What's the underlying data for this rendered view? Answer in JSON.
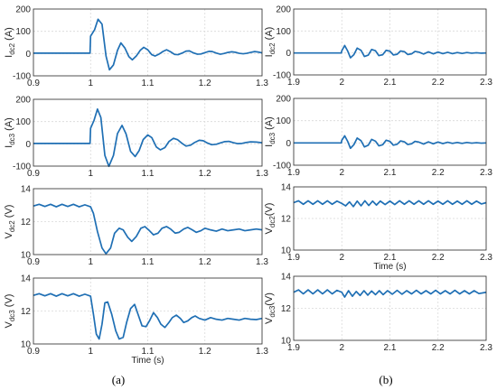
{
  "trace_color": "#1f6fb4",
  "captions": {
    "left": "(a)",
    "right": "(b)"
  },
  "chart_data": [
    {
      "id": "a1",
      "type": "line",
      "ylabel": "I",
      "ylabel_sub": "dc2",
      "ylabel_unit": " (A)",
      "xlim": [
        0.9,
        1.3
      ],
      "ylim": [
        -100,
        200
      ],
      "xticks": [
        "0.9",
        "1",
        "1.1",
        "1.2",
        "1.3"
      ],
      "yticks": [
        "-100",
        "0",
        "100",
        "200"
      ],
      "xlabel": "",
      "series": [
        {
          "x": [
            0.9,
            0.98,
            0.999,
            1.0,
            1.007,
            1.013,
            1.02,
            1.027,
            1.033,
            1.04,
            1.047,
            1.053,
            1.06,
            1.067,
            1.073,
            1.08,
            1.087,
            1.093,
            1.1,
            1.107,
            1.113,
            1.12,
            1.127,
            1.133,
            1.14,
            1.147,
            1.153,
            1.16,
            1.167,
            1.173,
            1.18,
            1.187,
            1.193,
            1.2,
            1.207,
            1.213,
            1.22,
            1.227,
            1.233,
            1.24,
            1.247,
            1.253,
            1.26,
            1.267,
            1.273,
            1.28,
            1.287,
            1.293,
            1.3
          ],
          "y": [
            2,
            2,
            2,
            78,
            107,
            154,
            132,
            -11,
            -73,
            -51,
            14,
            48,
            25,
            -14,
            -28,
            -11,
            15,
            28,
            17,
            -5,
            -11,
            -2,
            10,
            17,
            8,
            -4,
            -5,
            2,
            11,
            12,
            3,
            -3,
            -2,
            4,
            10,
            9,
            2,
            -3,
            0,
            5,
            8,
            6,
            1,
            -1,
            1,
            5,
            9,
            7,
            3
          ]
        }
      ]
    },
    {
      "id": "a2",
      "type": "line",
      "ylabel": "I",
      "ylabel_sub": "dc3",
      "ylabel_unit": " (A)",
      "xlim": [
        0.9,
        1.3
      ],
      "ylim": [
        -100,
        200
      ],
      "xticks": [
        "0.9",
        "1",
        "1.1",
        "1.2",
        "1.3"
      ],
      "yticks": [
        "-100",
        "0",
        "100",
        "200"
      ],
      "xlabel": "",
      "series": [
        {
          "x": [
            0.9,
            0.98,
            0.999,
            1.0,
            1.006,
            1.012,
            1.018,
            1.025,
            1.032,
            1.04,
            1.047,
            1.055,
            1.062,
            1.07,
            1.078,
            1.085,
            1.092,
            1.1,
            1.107,
            1.115,
            1.122,
            1.13,
            1.137,
            1.145,
            1.152,
            1.16,
            1.167,
            1.175,
            1.182,
            1.19,
            1.197,
            1.205,
            1.212,
            1.22,
            1.227,
            1.235,
            1.242,
            1.25,
            1.257,
            1.265,
            1.272,
            1.28,
            1.29,
            1.3
          ],
          "y": [
            2,
            2,
            2,
            70,
            105,
            156,
            118,
            -52,
            -101,
            -52,
            46,
            83,
            45,
            -34,
            -57,
            -30,
            19,
            40,
            28,
            -14,
            -27,
            -17,
            10,
            25,
            19,
            2,
            -10,
            -6,
            6,
            16,
            14,
            3,
            -4,
            -2,
            4,
            10,
            11,
            5,
            1,
            2,
            6,
            9,
            8,
            5
          ]
        }
      ]
    },
    {
      "id": "a3",
      "type": "line",
      "ylabel": "V",
      "ylabel_sub": "dc2",
      "ylabel_unit": " (V)",
      "xlim": [
        0.9,
        1.3
      ],
      "ylim": [
        10,
        14
      ],
      "xticks": [
        "0.9",
        "1",
        "1.1",
        "1.2",
        "1.3"
      ],
      "yticks": [
        "10",
        "12",
        "14"
      ],
      "xlabel": "",
      "series": [
        {
          "x": [
            0.9,
            0.91,
            0.92,
            0.93,
            0.94,
            0.95,
            0.96,
            0.97,
            0.98,
            0.99,
            1.0,
            1.005,
            1.012,
            1.02,
            1.027,
            1.035,
            1.042,
            1.05,
            1.057,
            1.065,
            1.072,
            1.08,
            1.088,
            1.095,
            1.103,
            1.11,
            1.118,
            1.125,
            1.133,
            1.14,
            1.148,
            1.155,
            1.163,
            1.17,
            1.178,
            1.185,
            1.193,
            1.2,
            1.21,
            1.22,
            1.23,
            1.24,
            1.25,
            1.26,
            1.27,
            1.28,
            1.29,
            1.3
          ],
          "y": [
            12.95,
            13.05,
            12.92,
            13.05,
            12.9,
            13.05,
            12.92,
            13.05,
            12.9,
            13.02,
            12.9,
            12.5,
            11.4,
            10.4,
            10.05,
            10.4,
            11.3,
            11.6,
            11.5,
            11.05,
            10.8,
            11.1,
            11.6,
            11.7,
            11.45,
            11.2,
            11.3,
            11.6,
            11.7,
            11.55,
            11.3,
            11.35,
            11.55,
            11.65,
            11.5,
            11.35,
            11.45,
            11.6,
            11.5,
            11.42,
            11.55,
            11.45,
            11.5,
            11.55,
            11.45,
            11.5,
            11.55,
            11.5
          ]
        }
      ]
    },
    {
      "id": "a4",
      "type": "line",
      "ylabel": "V",
      "ylabel_sub": "dc3",
      "ylabel_unit": " (V)",
      "xlim": [
        0.9,
        1.3
      ],
      "ylim": [
        10,
        14
      ],
      "xticks": [
        "0.9",
        "1",
        "1.1",
        "1.2",
        "1.3"
      ],
      "yticks": [
        "10",
        "12",
        "14"
      ],
      "xlabel": "Time (s)",
      "series": [
        {
          "x": [
            0.9,
            0.91,
            0.92,
            0.93,
            0.94,
            0.95,
            0.96,
            0.97,
            0.98,
            0.99,
            1.0,
            1.005,
            1.01,
            1.015,
            1.02,
            1.025,
            1.03,
            1.037,
            1.044,
            1.05,
            1.057,
            1.063,
            1.07,
            1.077,
            1.083,
            1.09,
            1.097,
            1.103,
            1.11,
            1.117,
            1.123,
            1.13,
            1.137,
            1.143,
            1.15,
            1.157,
            1.163,
            1.17,
            1.177,
            1.183,
            1.19,
            1.2,
            1.21,
            1.22,
            1.23,
            1.24,
            1.25,
            1.26,
            1.27,
            1.28,
            1.29,
            1.3
          ],
          "y": [
            12.95,
            13.05,
            12.92,
            13.05,
            12.9,
            13.05,
            12.92,
            13.05,
            12.9,
            13.02,
            12.9,
            11.8,
            10.6,
            10.3,
            11.2,
            12.5,
            12.55,
            11.8,
            10.8,
            10.3,
            10.4,
            11.3,
            12.15,
            12.4,
            11.8,
            11.1,
            11.05,
            11.4,
            11.9,
            11.6,
            11.2,
            11.0,
            11.3,
            11.6,
            11.75,
            11.55,
            11.3,
            11.4,
            11.6,
            11.7,
            11.55,
            11.45,
            11.6,
            11.5,
            11.45,
            11.55,
            11.5,
            11.45,
            11.55,
            11.5,
            11.48,
            11.55
          ]
        }
      ]
    },
    {
      "id": "b1",
      "type": "line",
      "ylabel": "I",
      "ylabel_sub": "dc2",
      "ylabel_unit": " (A)",
      "xlim": [
        1.9,
        2.3
      ],
      "ylim": [
        -100,
        200
      ],
      "xticks": [
        "1.9",
        "2",
        "2.1",
        "2.2",
        "2.3"
      ],
      "yticks": [
        "-100",
        "0",
        "100",
        "200"
      ],
      "xlabel": "",
      "series": [
        {
          "x": [
            1.9,
            1.98,
            1.999,
            2.0,
            2.006,
            2.012,
            2.018,
            2.025,
            2.032,
            2.04,
            2.047,
            2.055,
            2.062,
            2.07,
            2.077,
            2.085,
            2.092,
            2.1,
            2.107,
            2.115,
            2.122,
            2.13,
            2.137,
            2.145,
            2.152,
            2.16,
            2.17,
            2.18,
            2.19,
            2.2,
            2.21,
            2.22,
            2.23,
            2.24,
            2.25,
            2.26,
            2.27,
            2.28,
            2.29,
            2.3
          ],
          "y": [
            0,
            0,
            0,
            10,
            34,
            10,
            -22,
            -8,
            22,
            12,
            -16,
            -10,
            16,
            10,
            -12,
            -8,
            12,
            8,
            -9,
            -6,
            9,
            6,
            -7,
            -4,
            7,
            4,
            -5,
            5,
            -4,
            4,
            -3,
            3,
            -3,
            2,
            -2,
            2,
            -1,
            1,
            -1,
            0
          ]
        }
      ]
    },
    {
      "id": "b2",
      "type": "line",
      "ylabel": "I",
      "ylabel_sub": "dc3",
      "ylabel_unit": " (A)",
      "xlim": [
        1.9,
        2.3
      ],
      "ylim": [
        -100,
        200
      ],
      "xticks": [
        "1.9",
        "2",
        "2.1",
        "2.2",
        "2.3"
      ],
      "yticks": [
        "-100",
        "0",
        "100",
        "200"
      ],
      "xlabel": "",
      "series": [
        {
          "x": [
            1.9,
            1.98,
            1.999,
            2.0,
            2.006,
            2.012,
            2.018,
            2.025,
            2.032,
            2.04,
            2.047,
            2.055,
            2.062,
            2.07,
            2.077,
            2.085,
            2.092,
            2.1,
            2.107,
            2.115,
            2.122,
            2.13,
            2.137,
            2.145,
            2.152,
            2.16,
            2.17,
            2.18,
            2.19,
            2.2,
            2.21,
            2.22,
            2.23,
            2.24,
            2.25,
            2.26,
            2.27,
            2.28,
            2.29,
            2.3
          ],
          "y": [
            0,
            0,
            0,
            12,
            32,
            8,
            -24,
            -8,
            22,
            10,
            -18,
            -10,
            16,
            8,
            -13,
            -8,
            12,
            7,
            -10,
            -6,
            9,
            5,
            -7,
            -4,
            7,
            4,
            -5,
            5,
            -4,
            4,
            -3,
            3,
            -2,
            2,
            -2,
            2,
            -1,
            1,
            -1,
            0
          ]
        }
      ]
    },
    {
      "id": "b3",
      "type": "line",
      "ylabel": "V",
      "ylabel_sub": "dc2",
      "ylabel_unit": "(V)",
      "xlim": [
        1.9,
        2.3
      ],
      "ylim": [
        10,
        14
      ],
      "xticks": [
        "1.9",
        "2",
        "2.1",
        "2.2",
        "2.3"
      ],
      "yticks": [
        "10",
        "12",
        "14"
      ],
      "xlabel": "Time (s)",
      "series": [
        {
          "x": [
            1.9,
            1.91,
            1.92,
            1.93,
            1.94,
            1.95,
            1.96,
            1.97,
            1.98,
            1.99,
            2.0,
            2.008,
            2.016,
            2.024,
            2.032,
            2.04,
            2.048,
            2.056,
            2.064,
            2.072,
            2.08,
            2.09,
            2.1,
            2.11,
            2.12,
            2.13,
            2.14,
            2.15,
            2.16,
            2.17,
            2.18,
            2.19,
            2.2,
            2.21,
            2.22,
            2.23,
            2.24,
            2.25,
            2.26,
            2.27,
            2.28,
            2.29,
            2.3
          ],
          "y": [
            13.0,
            13.12,
            12.9,
            13.12,
            12.9,
            13.12,
            12.9,
            13.12,
            12.9,
            13.1,
            12.95,
            12.8,
            13.05,
            12.75,
            13.1,
            12.8,
            13.12,
            12.82,
            13.1,
            12.85,
            13.1,
            12.88,
            13.1,
            12.88,
            13.12,
            12.9,
            13.12,
            12.9,
            13.12,
            12.9,
            13.12,
            12.9,
            13.1,
            12.9,
            13.12,
            12.9,
            13.1,
            12.9,
            13.12,
            12.9,
            13.1,
            12.92,
            13.0
          ]
        }
      ]
    },
    {
      "id": "b4",
      "type": "line",
      "ylabel": "V",
      "ylabel_sub": "dc3",
      "ylabel_unit": "(V)",
      "xlim": [
        1.9,
        2.3
      ],
      "ylim": [
        10,
        14
      ],
      "xticks": [
        "1.9",
        "2",
        "2.1",
        "2.2",
        "2.3"
      ],
      "yticks": [
        "10",
        "12",
        "14"
      ],
      "xlabel": "",
      "series": [
        {
          "x": [
            1.9,
            1.91,
            1.92,
            1.93,
            1.94,
            1.95,
            1.96,
            1.97,
            1.98,
            1.99,
            2.0,
            2.006,
            2.014,
            2.022,
            2.03,
            2.038,
            2.046,
            2.054,
            2.062,
            2.07,
            2.078,
            2.086,
            2.095,
            2.105,
            2.115,
            2.125,
            2.135,
            2.145,
            2.155,
            2.165,
            2.175,
            2.185,
            2.195,
            2.205,
            2.215,
            2.225,
            2.235,
            2.245,
            2.255,
            2.265,
            2.275,
            2.285,
            2.3
          ],
          "y": [
            13.0,
            13.15,
            12.9,
            13.15,
            12.9,
            13.15,
            12.9,
            13.15,
            12.9,
            13.12,
            13.0,
            12.7,
            13.1,
            12.75,
            13.05,
            12.8,
            13.1,
            12.82,
            13.08,
            12.85,
            13.1,
            12.85,
            13.1,
            12.88,
            13.12,
            12.88,
            13.1,
            12.9,
            13.12,
            12.9,
            13.1,
            12.9,
            13.12,
            12.9,
            13.1,
            12.9,
            13.12,
            12.9,
            13.1,
            12.9,
            13.1,
            12.92,
            13.0
          ]
        }
      ]
    }
  ]
}
